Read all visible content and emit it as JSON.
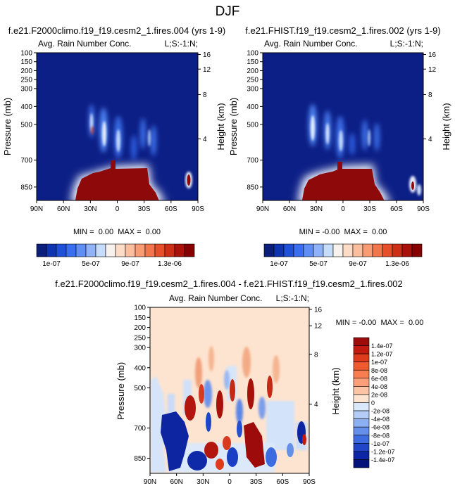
{
  "title": "DJF",
  "chart_data": [
    {
      "type": "heatmap",
      "panel": "top-left",
      "title": "f.e21.F2000climo.f19_f19.cesm2_1.fires.004 (yrs 1-9)",
      "left_string": "Avg. Rain Number Conc.",
      "right_string": "L;S:-1:N;",
      "ylabel": "Pressure (mb)",
      "ylabel_right": "Height (km)",
      "x_ticks": [
        "90N",
        "60N",
        "30N",
        "0",
        "30S",
        "60S",
        "90S"
      ],
      "y_ticks": [
        "100",
        "150",
        "200",
        "250",
        "300",
        "400",
        "500",
        "700",
        "850"
      ],
      "y_ticks_right": [
        "16",
        "12",
        "8",
        "4"
      ],
      "stats": "MIN =  0.00  MAX =  0.00",
      "ylim": [
        100,
        925
      ],
      "xlim": [
        90,
        -90
      ],
      "colorbar": {
        "orientation": "horizontal",
        "labels": [
          "1e-07",
          "5e-07",
          "9e-07",
          "1.3e-06"
        ],
        "colors": [
          "#0a1e7a",
          "#0f34b0",
          "#1f50d8",
          "#3a6ef0",
          "#5f8ff5",
          "#8fb2f8",
          "#c6dcfb",
          "#f7f2ee",
          "#fcdcc6",
          "#fbbf9f",
          "#f89c73",
          "#f2764b",
          "#e5502b",
          "#cc2f16",
          "#a81208",
          "#860000"
        ]
      }
    },
    {
      "type": "heatmap",
      "panel": "top-right",
      "title": "f.e21.FHIST.f19_f19.cesm2_1.fires.002 (yrs 1-9)",
      "left_string": "Avg. Rain Number Conc.",
      "right_string": "L;S:-1:N;",
      "ylabel": "Pressure (mb)",
      "ylabel_right": "Height (km)",
      "x_ticks": [
        "90N",
        "60N",
        "30N",
        "0",
        "30S",
        "60S",
        "90S"
      ],
      "y_ticks": [
        "100",
        "150",
        "200",
        "250",
        "300",
        "400",
        "500",
        "700",
        "850"
      ],
      "y_ticks_right": [
        "16",
        "12",
        "8",
        "4"
      ],
      "stats": "MIN = -0.00  MAX =  0.00",
      "ylim": [
        100,
        925
      ],
      "xlim": [
        90,
        -90
      ],
      "colorbar": {
        "orientation": "horizontal",
        "labels": [
          "1e-07",
          "5e-07",
          "9e-07",
          "1.3e-06"
        ],
        "colors": [
          "#0a1e7a",
          "#0f34b0",
          "#1f50d8",
          "#3a6ef0",
          "#5f8ff5",
          "#8fb2f8",
          "#c6dcfb",
          "#f7f2ee",
          "#fcdcc6",
          "#fbbf9f",
          "#f89c73",
          "#f2764b",
          "#e5502b",
          "#cc2f16",
          "#a81208",
          "#860000"
        ]
      }
    },
    {
      "type": "heatmap",
      "panel": "bottom",
      "title": "f.e21.F2000climo.f19_f19.cesm2_1.fires.004 - f.e21.FHIST.f19_f19.cesm2_1.fires.002",
      "left_string": "Avg. Rain Number Conc.",
      "right_string": "L;S:-1:N;",
      "ylabel": "Pressure (mb)",
      "ylabel_right": "Height (km)",
      "x_ticks": [
        "90N",
        "60N",
        "30N",
        "0",
        "30S",
        "60S",
        "90S"
      ],
      "y_ticks": [
        "100",
        "150",
        "200",
        "250",
        "300",
        "400",
        "500",
        "700",
        "850"
      ],
      "y_ticks_right": [
        "16",
        "12",
        "8",
        "4"
      ],
      "stats": "MIN = -0.00  MAX =  0.00",
      "ylim": [
        100,
        925
      ],
      "xlim": [
        90,
        -90
      ],
      "colorbar": {
        "orientation": "vertical",
        "labels": [
          "1.4e-07",
          "1.2e-07",
          "1e-07",
          "8e-08",
          "6e-08",
          "4e-08",
          "2e-08",
          "0",
          "-2e-08",
          "-4e-08",
          "-6e-08",
          "-8e-08",
          "-1e-07",
          "-1.2e-07",
          "-1.4e-07"
        ],
        "colors": [
          "#9e0b0b",
          "#c21a0e",
          "#e03a1c",
          "#f05a30",
          "#f87d50",
          "#fb9f78",
          "#fcc3a4",
          "#fde4d0",
          "#d9e8fa",
          "#b3cdf6",
          "#8cb0f1",
          "#6590ea",
          "#3d6ce0",
          "#1f46c9",
          "#0c26a6",
          "#04137a"
        ]
      }
    }
  ]
}
